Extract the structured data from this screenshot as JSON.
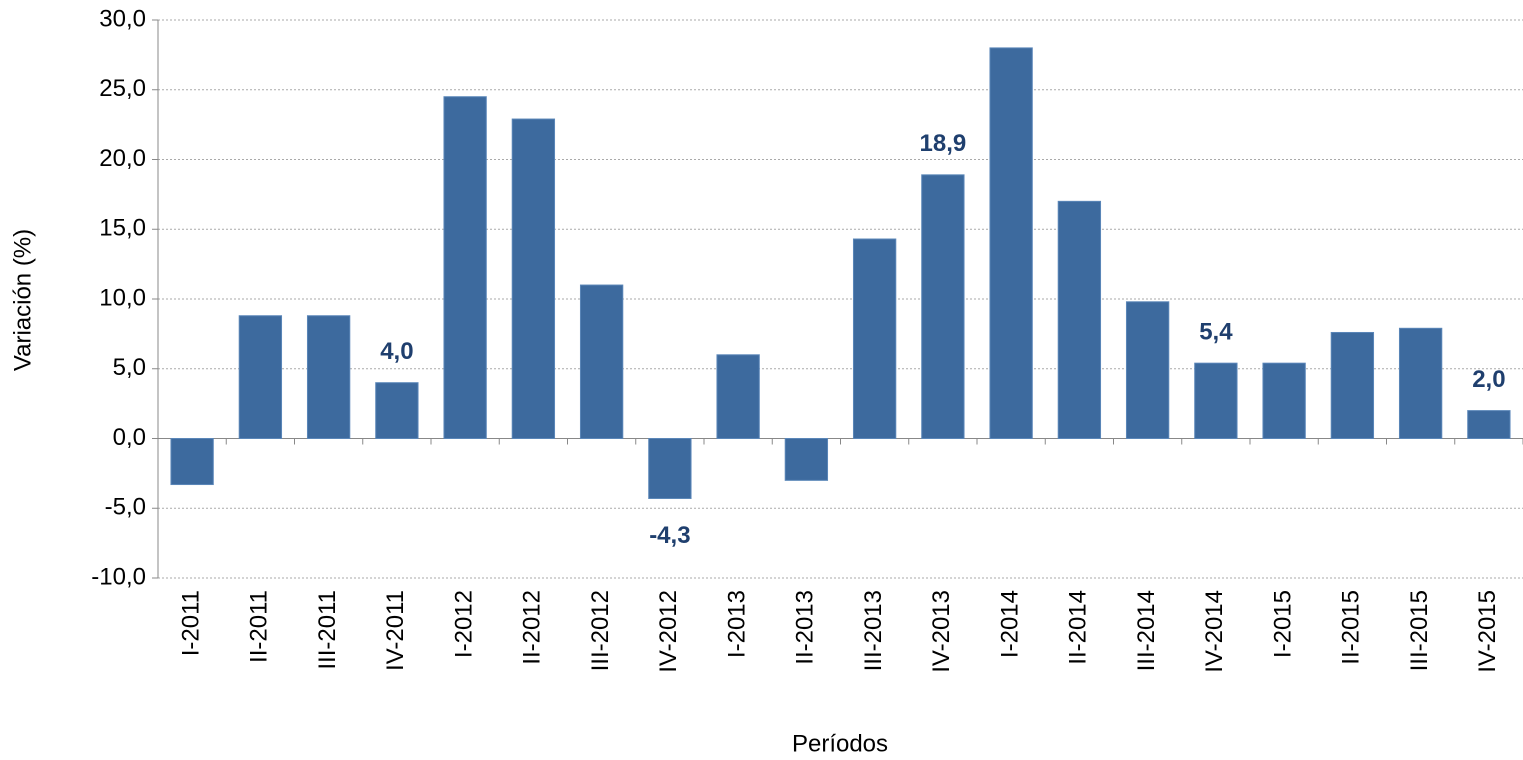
{
  "chart_data": {
    "type": "bar",
    "x_label": "Períodos",
    "y_label": "Variación (%)",
    "categories": [
      "I-2011",
      "II-2011",
      "III-2011",
      "IV-2011",
      "I-2012",
      "II-2012",
      "III-2012",
      "IV-2012",
      "I-2013",
      "II-2013",
      "III-2013",
      "IV-2013",
      "I-2014",
      "II-2014",
      "III-2014",
      "IV-2014",
      "I-2015",
      "II-2015",
      "III-2015",
      "IV-2015"
    ],
    "values": [
      -3.3,
      8.8,
      8.8,
      4.0,
      24.5,
      22.9,
      11.0,
      -4.3,
      6.0,
      -3.0,
      14.3,
      18.9,
      28.0,
      17.0,
      9.8,
      5.4,
      5.4,
      7.6,
      7.9,
      2.0
    ],
    "value_labels": [
      null,
      null,
      null,
      "4,0",
      null,
      null,
      null,
      "-4,3",
      null,
      null,
      null,
      "18,9",
      null,
      null,
      null,
      "5,4",
      null,
      null,
      null,
      "2,0"
    ],
    "color": "#3d6a9e",
    "label_color": "#1f3f6e",
    "ylim": [
      -10,
      30
    ],
    "yticks": [
      {
        "value": -10,
        "label": "-10,0"
      },
      {
        "value": -5,
        "label": "-5,0"
      },
      {
        "value": 0,
        "label": "0,0"
      },
      {
        "value": 5,
        "label": "5,0"
      },
      {
        "value": 10,
        "label": "10,0"
      },
      {
        "value": 15,
        "label": "15,0"
      },
      {
        "value": 20,
        "label": "20,0"
      },
      {
        "value": 25,
        "label": "25,0"
      },
      {
        "value": 30,
        "label": "30,0"
      }
    ],
    "grid": true
  }
}
